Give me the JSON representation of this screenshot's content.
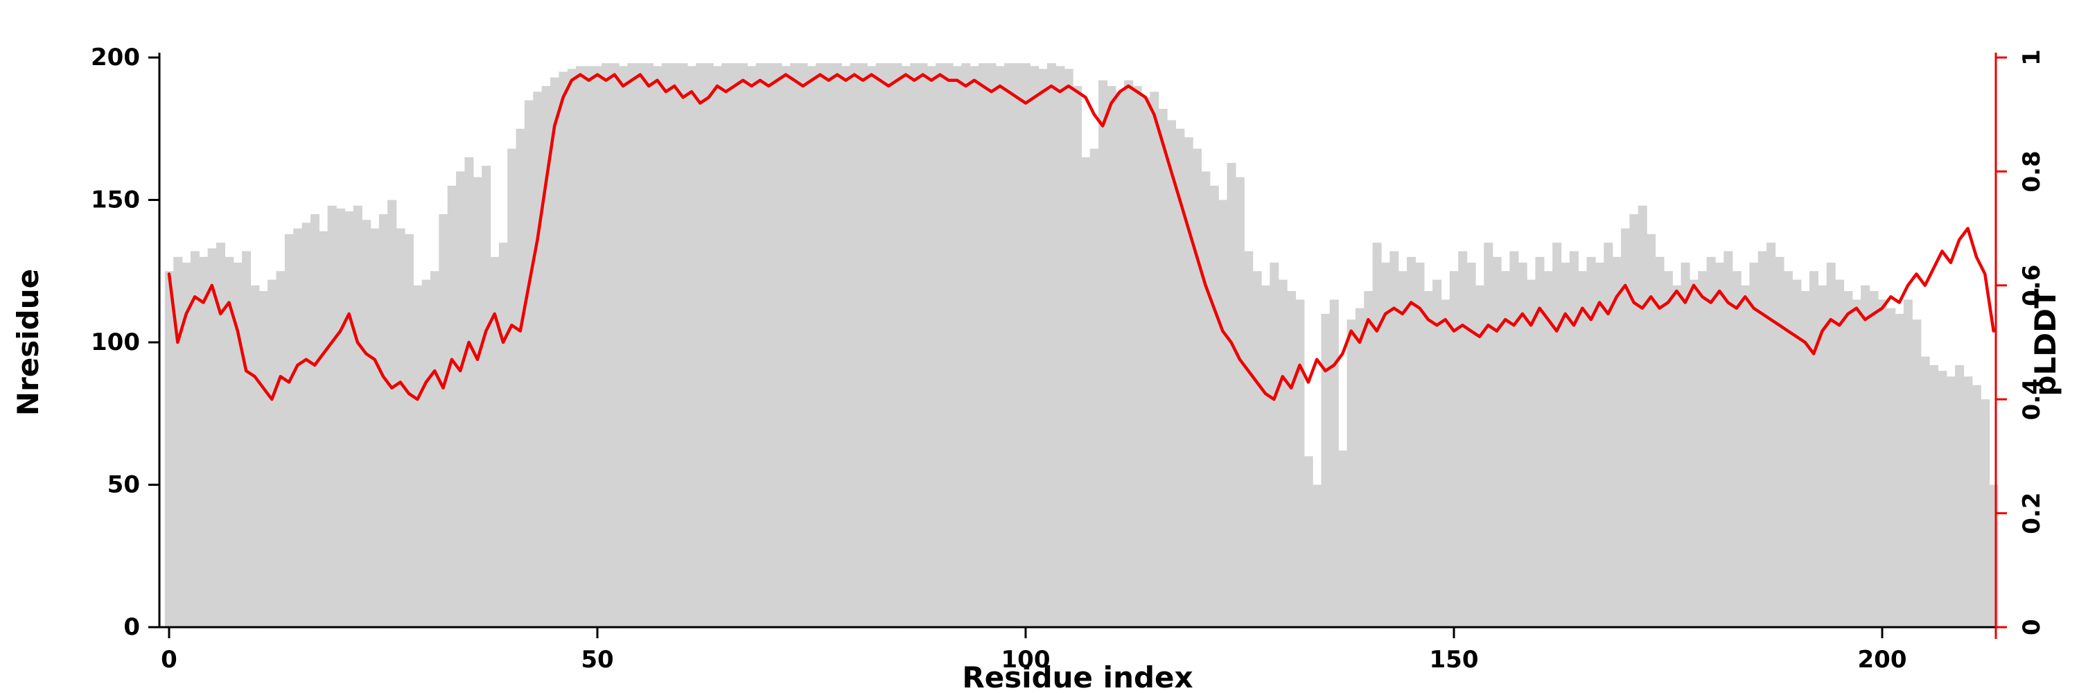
{
  "chart_data": {
    "type": "bar",
    "title": "",
    "xlabel": "Residue index",
    "ylabel_left": "Nresidue",
    "ylabel_right": "pLDDT",
    "x_ticks": [
      0,
      50,
      100,
      150,
      200
    ],
    "y_ticks_left": [
      0,
      50,
      100,
      150,
      200
    ],
    "y_ticks_right": [
      0,
      0.2,
      0.4,
      0.6,
      0.8,
      1
    ],
    "ylim_left": [
      0,
      200
    ],
    "ylim_right": [
      0,
      1
    ],
    "xlim": [
      -1,
      214
    ],
    "grid": "off",
    "legend": "none",
    "bar_color": "#d3d3d3",
    "line_color": "#ee0000",
    "background": "#ffffff",
    "x_start": 0,
    "x_step": 1,
    "n_points": 214,
    "series": [
      {
        "name": "Nresidue",
        "type": "bar",
        "axis": "left",
        "values": [
          125,
          130,
          128,
          132,
          130,
          133,
          135,
          130,
          128,
          132,
          120,
          118,
          122,
          125,
          138,
          140,
          142,
          145,
          139,
          148,
          147,
          146,
          148,
          143,
          140,
          145,
          150,
          140,
          138,
          120,
          122,
          125,
          145,
          155,
          160,
          165,
          158,
          162,
          130,
          135,
          168,
          175,
          185,
          188,
          190,
          193,
          195,
          196,
          197,
          197,
          197,
          198,
          198,
          197,
          198,
          198,
          198,
          197,
          198,
          198,
          198,
          197,
          198,
          198,
          197,
          198,
          198,
          198,
          197,
          198,
          198,
          198,
          197,
          198,
          198,
          197,
          198,
          198,
          198,
          197,
          198,
          198,
          197,
          198,
          198,
          198,
          197,
          198,
          198,
          197,
          198,
          198,
          197,
          198,
          197,
          198,
          198,
          197,
          198,
          198,
          198,
          197,
          196,
          198,
          197,
          196,
          190,
          165,
          168,
          192,
          190,
          188,
          192,
          190,
          186,
          188,
          182,
          178,
          175,
          172,
          168,
          160,
          155,
          150,
          163,
          158,
          132,
          125,
          120,
          128,
          122,
          118,
          115,
          60,
          50,
          110,
          115,
          62,
          108,
          112,
          118,
          135,
          128,
          132,
          125,
          130,
          128,
          118,
          122,
          115,
          125,
          132,
          128,
          120,
          135,
          130,
          125,
          132,
          128,
          122,
          130,
          125,
          135,
          128,
          132,
          125,
          130,
          128,
          135,
          130,
          140,
          145,
          148,
          138,
          130,
          125,
          120,
          128,
          122,
          125,
          130,
          128,
          132,
          125,
          120,
          128,
          132,
          135,
          130,
          125,
          122,
          118,
          125,
          120,
          128,
          122,
          118,
          115,
          120,
          118,
          115,
          112,
          110,
          115,
          108,
          95,
          92,
          90,
          88,
          92,
          88,
          85,
          80,
          50
        ]
      },
      {
        "name": "pLDDT",
        "type": "line",
        "axis": "right",
        "values": [
          0.62,
          0.5,
          0.55,
          0.58,
          0.57,
          0.6,
          0.55,
          0.57,
          0.52,
          0.45,
          0.44,
          0.42,
          0.4,
          0.44,
          0.43,
          0.46,
          0.47,
          0.46,
          0.48,
          0.5,
          0.52,
          0.55,
          0.5,
          0.48,
          0.47,
          0.44,
          0.42,
          0.43,
          0.41,
          0.4,
          0.43,
          0.45,
          0.42,
          0.47,
          0.45,
          0.5,
          0.47,
          0.52,
          0.55,
          0.5,
          0.53,
          0.52,
          0.6,
          0.68,
          0.78,
          0.88,
          0.93,
          0.96,
          0.97,
          0.96,
          0.97,
          0.96,
          0.97,
          0.95,
          0.96,
          0.97,
          0.95,
          0.96,
          0.94,
          0.95,
          0.93,
          0.94,
          0.92,
          0.93,
          0.95,
          0.94,
          0.95,
          0.96,
          0.95,
          0.96,
          0.95,
          0.96,
          0.97,
          0.96,
          0.95,
          0.96,
          0.97,
          0.96,
          0.97,
          0.96,
          0.97,
          0.96,
          0.97,
          0.96,
          0.95,
          0.96,
          0.97,
          0.96,
          0.97,
          0.96,
          0.97,
          0.96,
          0.96,
          0.95,
          0.96,
          0.95,
          0.94,
          0.95,
          0.94,
          0.93,
          0.92,
          0.93,
          0.94,
          0.95,
          0.94,
          0.95,
          0.94,
          0.93,
          0.9,
          0.88,
          0.92,
          0.94,
          0.95,
          0.94,
          0.93,
          0.9,
          0.85,
          0.8,
          0.75,
          0.7,
          0.65,
          0.6,
          0.56,
          0.52,
          0.5,
          0.47,
          0.45,
          0.43,
          0.41,
          0.4,
          0.44,
          0.42,
          0.46,
          0.43,
          0.47,
          0.45,
          0.46,
          0.48,
          0.52,
          0.5,
          0.54,
          0.52,
          0.55,
          0.56,
          0.55,
          0.57,
          0.56,
          0.54,
          0.53,
          0.54,
          0.52,
          0.53,
          0.52,
          0.51,
          0.53,
          0.52,
          0.54,
          0.53,
          0.55,
          0.53,
          0.56,
          0.54,
          0.52,
          0.55,
          0.53,
          0.56,
          0.54,
          0.57,
          0.55,
          0.58,
          0.6,
          0.57,
          0.56,
          0.58,
          0.56,
          0.57,
          0.59,
          0.57,
          0.6,
          0.58,
          0.57,
          0.59,
          0.57,
          0.56,
          0.58,
          0.56,
          0.55,
          0.54,
          0.53,
          0.52,
          0.51,
          0.5,
          0.48,
          0.52,
          0.54,
          0.53,
          0.55,
          0.56,
          0.54,
          0.55,
          0.56,
          0.58,
          0.57,
          0.6,
          0.62,
          0.6,
          0.63,
          0.66,
          0.64,
          0.68,
          0.7,
          0.65,
          0.62,
          0.52
        ]
      }
    ]
  }
}
